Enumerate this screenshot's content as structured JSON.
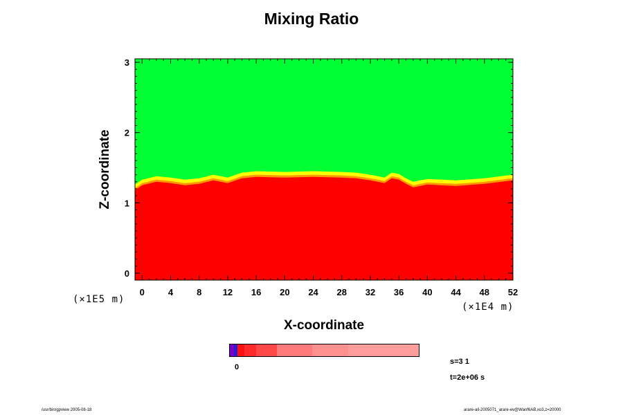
{
  "chart_data": {
    "type": "heatmap",
    "title": "Mixing Ratio",
    "xlabel": "X-coordinate",
    "ylabel": "Z-coordinate",
    "x_ticks": [
      "0",
      "4",
      "8",
      "12",
      "16",
      "20",
      "24",
      "28",
      "32",
      "36",
      "40",
      "44",
      "48",
      "52"
    ],
    "y_ticks": [
      "0",
      "1",
      "2",
      "3"
    ],
    "x_scale_label": "(×1E4 m)",
    "y_scale_label": "(×1E5 m)",
    "xlim": [
      -1,
      52
    ],
    "ylim": [
      -0.1,
      3.05
    ],
    "upper_color": "#00ff33",
    "lower_color": "#ff0000",
    "interface_colors": [
      "#ffff00",
      "#ff9900"
    ],
    "interface_profile": {
      "x": [
        -1,
        0,
        2,
        4,
        6,
        8,
        10,
        12,
        14,
        16,
        20,
        24,
        28,
        30,
        32,
        34,
        35,
        36,
        37,
        38,
        40,
        44,
        48,
        52
      ],
      "z": [
        1.18,
        1.25,
        1.3,
        1.28,
        1.25,
        1.27,
        1.32,
        1.28,
        1.35,
        1.37,
        1.36,
        1.37,
        1.36,
        1.35,
        1.32,
        1.28,
        1.35,
        1.33,
        1.27,
        1.22,
        1.26,
        1.24,
        1.27,
        1.32
      ]
    },
    "colorbar": {
      "label": "0",
      "colors": [
        "#7a00c8",
        "#2a1cd0",
        "#ff1010",
        "#ff2a2a",
        "#ff4848",
        "#ff7a7a",
        "#ff9090",
        "#ff9d9d"
      ],
      "widths": [
        3,
        2,
        5,
        8,
        14,
        24,
        24,
        48
      ]
    },
    "annotations": {
      "step": "s=3 1",
      "time": "t=2e+06 s"
    }
  },
  "footer": {
    "left": "/usr/bin/gpview 2005-08-18",
    "right": "arare-all-2005071_arare-ev@Wanf6AB,xo3,z=20000"
  }
}
